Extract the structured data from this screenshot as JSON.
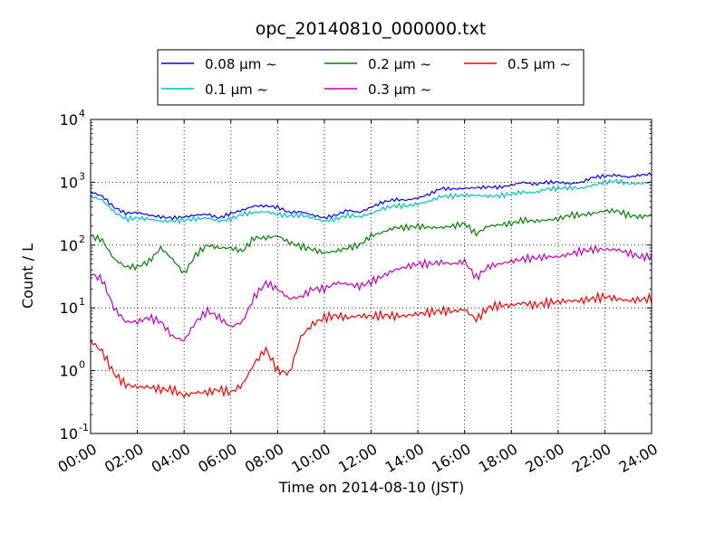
{
  "chart_data": {
    "type": "line",
    "title": "opc_20140810_000000.txt",
    "xlabel": "Time on 2014-08-10 (JST)",
    "ylabel": "Count / L",
    "yscale": "log",
    "ylim": [
      0.1,
      10000
    ],
    "xlim_hours": [
      0,
      24
    ],
    "xticks": [
      "00:00",
      "02:00",
      "04:00",
      "06:00",
      "08:00",
      "10:00",
      "12:00",
      "14:00",
      "16:00",
      "18:00",
      "20:00",
      "22:00",
      "24:00"
    ],
    "yticks": [
      {
        "value": 0.1,
        "base": "10",
        "exp": "-1"
      },
      {
        "value": 1,
        "base": "10",
        "exp": "0"
      },
      {
        "value": 10,
        "base": "10",
        "exp": "1"
      },
      {
        "value": 100,
        "base": "10",
        "exp": "2"
      },
      {
        "value": 1000,
        "base": "10",
        "exp": "3"
      },
      {
        "value": 10000,
        "base": "10",
        "exp": "4"
      }
    ],
    "grid": true,
    "legend_position": "top-center",
    "x_hours": [
      0,
      0.5,
      1,
      1.5,
      2,
      2.5,
      3,
      3.5,
      4,
      4.5,
      5,
      5.5,
      6,
      6.5,
      7,
      7.5,
      8,
      8.5,
      9,
      9.5,
      10,
      10.5,
      11,
      11.5,
      12,
      12.5,
      13,
      13.5,
      14,
      14.5,
      15,
      15.5,
      16,
      16.5,
      17,
      17.5,
      18,
      18.5,
      19,
      19.5,
      20,
      20.5,
      21,
      21.5,
      22,
      22.5,
      23,
      23.5,
      24
    ],
    "series": [
      {
        "name": "0.08 μm ~",
        "color": "#0000ff",
        "values": [
          700,
          600,
          400,
          320,
          330,
          300,
          280,
          270,
          280,
          300,
          310,
          270,
          320,
          360,
          420,
          420,
          400,
          330,
          340,
          300,
          270,
          300,
          360,
          330,
          400,
          480,
          530,
          520,
          560,
          650,
          800,
          780,
          800,
          820,
          840,
          830,
          900,
          1000,
          930,
          1000,
          1000,
          950,
          1000,
          1200,
          1250,
          1300,
          1200,
          1300,
          1350
        ]
      },
      {
        "name": "0.1 μm ~",
        "color": "#00c0c0",
        "values": [
          600,
          520,
          340,
          260,
          270,
          260,
          240,
          240,
          250,
          260,
          270,
          240,
          260,
          310,
          330,
          340,
          310,
          290,
          300,
          270,
          240,
          260,
          300,
          280,
          320,
          380,
          420,
          420,
          450,
          500,
          600,
          600,
          620,
          620,
          600,
          610,
          650,
          700,
          680,
          780,
          800,
          820,
          800,
          900,
          1000,
          1050,
          950,
          950,
          1000
        ]
      },
      {
        "name": "0.2 μm ~",
        "color": "#008000",
        "values": [
          140,
          120,
          60,
          45,
          45,
          55,
          90,
          60,
          35,
          70,
          100,
          90,
          90,
          80,
          130,
          130,
          140,
          110,
          95,
          85,
          75,
          80,
          90,
          100,
          140,
          160,
          190,
          190,
          200,
          190,
          190,
          200,
          220,
          150,
          200,
          210,
          220,
          250,
          240,
          250,
          260,
          300,
          300,
          320,
          350,
          350,
          300,
          280,
          300
        ]
      },
      {
        "name": "0.3 μm ~",
        "color": "#c000c0",
        "values": [
          35,
          28,
          10,
          6,
          6,
          7,
          6,
          3.5,
          3,
          6,
          9,
          7,
          5,
          6,
          15,
          25,
          20,
          14,
          15,
          20,
          20,
          25,
          24,
          22,
          26,
          32,
          40,
          45,
          50,
          50,
          53,
          50,
          55,
          30,
          45,
          50,
          55,
          60,
          62,
          65,
          65,
          72,
          80,
          85,
          85,
          85,
          75,
          65,
          65
        ]
      },
      {
        "name": "0.5 μm ~",
        "color": "#ff0000",
        "values": [
          3,
          2,
          0.9,
          0.6,
          0.55,
          0.55,
          0.5,
          0.5,
          0.4,
          0.45,
          0.45,
          0.5,
          0.45,
          0.6,
          1.3,
          2.2,
          1.0,
          0.9,
          3.5,
          5.5,
          7,
          7.5,
          7,
          7.5,
          7.3,
          7.6,
          7.4,
          7.5,
          8,
          8.5,
          9,
          8.8,
          9.5,
          6.5,
          10,
          11,
          11,
          12,
          11,
          12,
          12.5,
          13,
          13,
          14,
          15,
          14,
          13,
          13.5,
          14
        ]
      }
    ]
  }
}
